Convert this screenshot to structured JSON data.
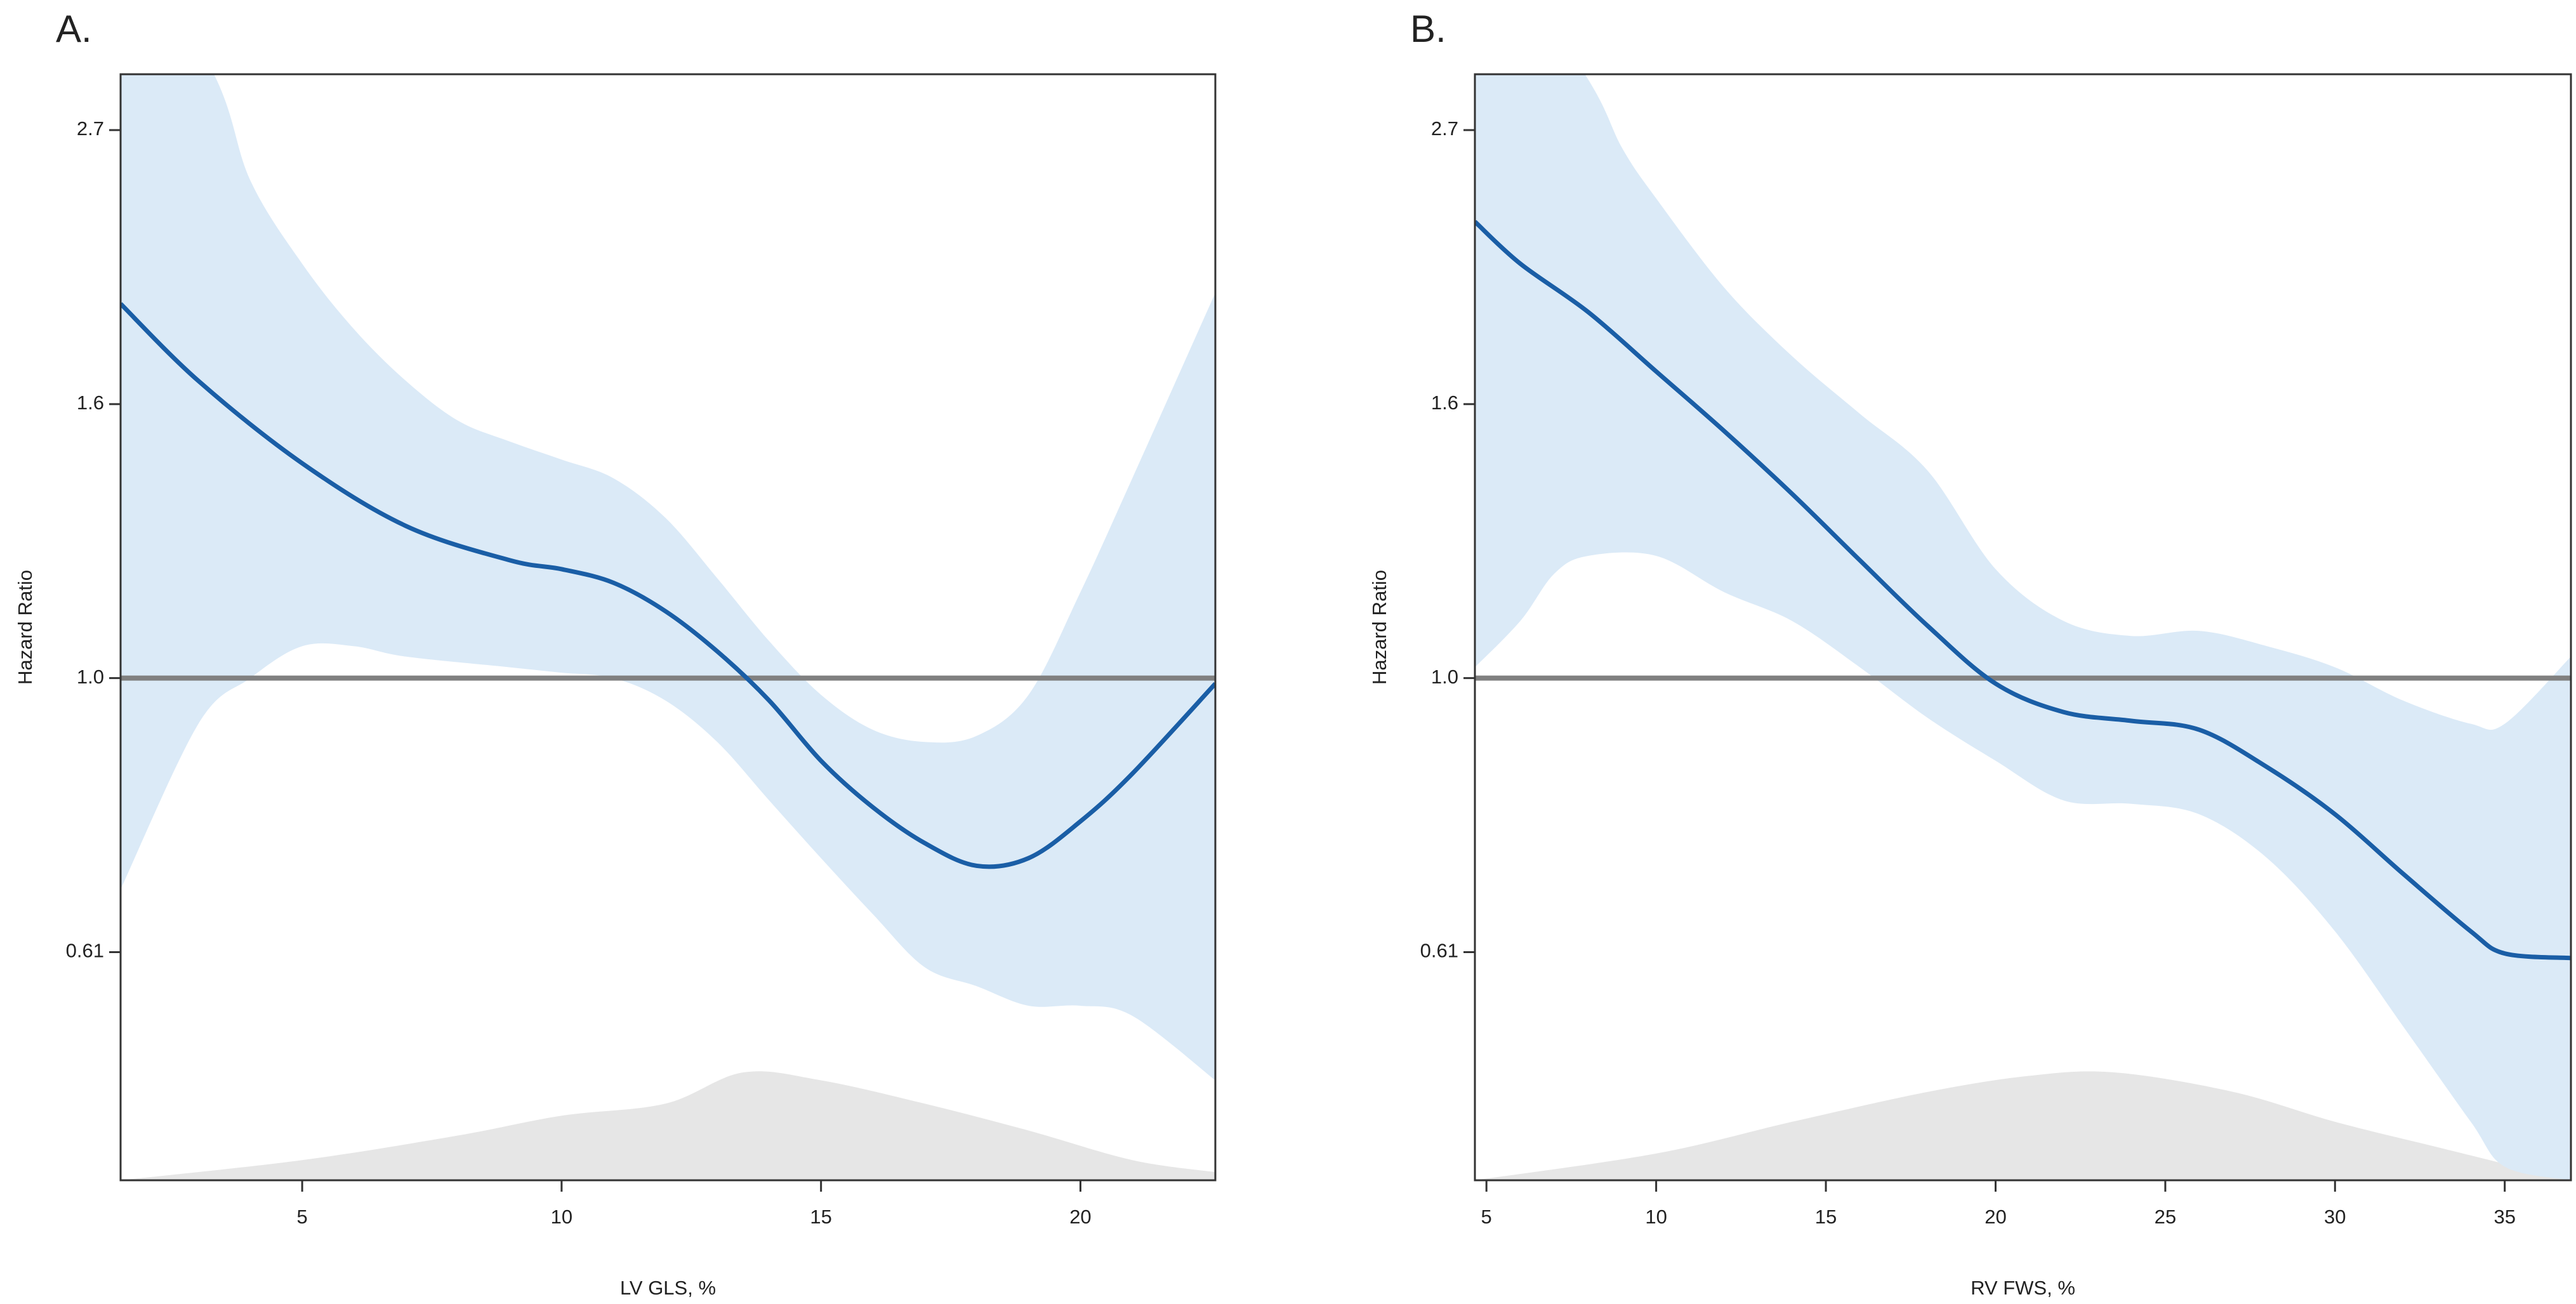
{
  "chart_data": [
    {
      "type": "spline",
      "title": "A.",
      "xlabel": "LV GLS, %",
      "ylabel": "Hazard Ratio",
      "xlim": [
        1.5,
        22.6
      ],
      "xticks": [
        5,
        10,
        15,
        20
      ],
      "ylim": [
        0.4,
        3.01
      ],
      "log_y": true,
      "yticks": [
        {
          "value": 0.6065,
          "label": "0.61"
        },
        {
          "value": 1,
          "label": "1.0"
        },
        {
          "value": 1.6487,
          "label": "1.6"
        },
        {
          "value": 2.7183,
          "label": "2.7"
        }
      ],
      "reference_line": 1,
      "line_color": "#1a5ea6",
      "band_color": "#dbeaf7",
      "density_color": "#e6e6e6",
      "reference_color": "#808080",
      "estimate": {
        "x": [
          1.5,
          3,
          5,
          7,
          9,
          10,
          11,
          12,
          13,
          14,
          15,
          16,
          17,
          18,
          19,
          20,
          21,
          22.6
        ],
        "values": [
          1.98,
          1.72,
          1.48,
          1.32,
          1.24,
          1.22,
          1.19,
          1.13,
          1.05,
          0.96,
          0.86,
          0.79,
          0.74,
          0.71,
          0.72,
          0.77,
          0.84,
          0.99
        ]
      },
      "ci_upper": {
        "x": [
          1.5,
          3.3,
          4,
          5,
          6,
          7,
          8,
          9,
          10,
          11,
          12,
          13,
          14,
          15,
          16,
          17,
          18,
          19,
          20,
          21,
          22.6
        ],
        "values": [
          4.0,
          3.01,
          2.48,
          2.13,
          1.89,
          1.72,
          1.6,
          1.54,
          1.49,
          1.44,
          1.34,
          1.2,
          1.07,
          0.97,
          0.91,
          0.89,
          0.9,
          0.97,
          1.17,
          1.44,
          2.02
        ]
      },
      "ci_lower": {
        "x": [
          1.5,
          3,
          4,
          5,
          6,
          7,
          9,
          10,
          11,
          12,
          13,
          14,
          15,
          16,
          17,
          18,
          19,
          20,
          21,
          22.6
        ],
        "values": [
          0.68,
          0.92,
          1.0,
          1.06,
          1.06,
          1.04,
          1.02,
          1.01,
          1.0,
          0.96,
          0.89,
          0.8,
          0.72,
          0.65,
          0.59,
          0.57,
          0.55,
          0.55,
          0.54,
          0.48
        ]
      },
      "density": {
        "x": [
          1.5,
          5,
          8,
          10,
          12,
          13.5,
          15,
          17,
          19,
          21,
          22.6
        ],
        "values": [
          0.4,
          0.415,
          0.434,
          0.45,
          0.46,
          0.487,
          0.48,
          0.46,
          0.438,
          0.415,
          0.406
        ]
      }
    },
    {
      "type": "spline",
      "title": "B.",
      "xlabel": "RV FWS, %",
      "ylabel": "Hazard Ratio",
      "xlim": [
        4.66,
        36.95
      ],
      "xticks": [
        5,
        10,
        15,
        20,
        25,
        30,
        35
      ],
      "ylim": [
        0.4,
        3.01
      ],
      "log_y": true,
      "yticks": [
        {
          "value": 0.6065,
          "label": "0.61"
        },
        {
          "value": 1,
          "label": "1.0"
        },
        {
          "value": 1.6487,
          "label": "1.6"
        },
        {
          "value": 2.7183,
          "label": "2.7"
        }
      ],
      "reference_line": 1,
      "line_color": "#1a5ea6",
      "band_color": "#dbeaf7",
      "density_color": "#e6e6e6",
      "reference_color": "#808080",
      "estimate": {
        "x": [
          4.66,
          6,
          8,
          10,
          12,
          14,
          16,
          18,
          20,
          22,
          24,
          26,
          28,
          30,
          32,
          34,
          35,
          36.95
        ],
        "values": [
          2.3,
          2.13,
          1.95,
          1.75,
          1.57,
          1.4,
          1.24,
          1.1,
          0.99,
          0.94,
          0.925,
          0.91,
          0.85,
          0.78,
          0.7,
          0.63,
          0.605,
          0.6
        ]
      },
      "ci_upper": {
        "x": [
          4.66,
          7.9,
          9,
          10,
          12,
          14,
          16,
          18,
          20,
          22,
          24,
          26,
          28,
          30,
          32,
          34,
          35,
          36.95
        ],
        "values": [
          4.0,
          3.01,
          2.63,
          2.4,
          2.04,
          1.8,
          1.62,
          1.46,
          1.22,
          1.11,
          1.08,
          1.09,
          1.06,
          1.02,
          0.96,
          0.92,
          0.92,
          1.04
        ]
      },
      "ci_lower": {
        "x": [
          4.66,
          6,
          7,
          8,
          10,
          12,
          14,
          16,
          18,
          20,
          22,
          24,
          26,
          28,
          30,
          32,
          34,
          35,
          36.95
        ],
        "values": [
          1.02,
          1.11,
          1.21,
          1.25,
          1.25,
          1.17,
          1.11,
          1.02,
          0.93,
          0.86,
          0.8,
          0.795,
          0.78,
          0.72,
          0.63,
          0.53,
          0.445,
          0.41,
          0.4
        ]
      },
      "density": {
        "x": [
          4.66,
          10,
          14,
          18,
          21,
          23.5,
          27,
          30,
          33,
          36.95
        ],
        "values": [
          0.4,
          0.42,
          0.445,
          0.47,
          0.484,
          0.487,
          0.47,
          0.445,
          0.425,
          0.4
        ]
      }
    }
  ]
}
